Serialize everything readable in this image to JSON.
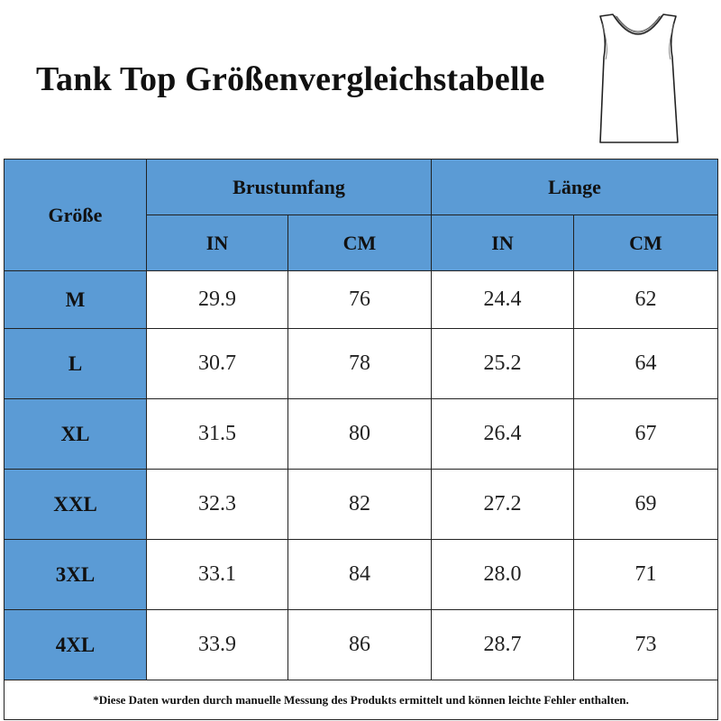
{
  "title": "Tank Top Größenvergleichstabelle",
  "colors": {
    "header_bg": "#5b9bd5",
    "cell_bg": "#ffffff",
    "border": "#222222"
  },
  "icons": {
    "garment": "tank-top-icon"
  },
  "table": {
    "size_header": "Größe",
    "groups": [
      "Brustumfang",
      "Länge"
    ],
    "units": [
      "IN",
      "CM",
      "IN",
      "CM"
    ],
    "rows": [
      {
        "size": "M",
        "values": [
          "29.9",
          "76",
          "24.4",
          "62"
        ]
      },
      {
        "size": "L",
        "values": [
          "30.7",
          "78",
          "25.2",
          "64"
        ]
      },
      {
        "size": "XL",
        "values": [
          "31.5",
          "80",
          "26.4",
          "67"
        ]
      },
      {
        "size": "XXL",
        "values": [
          "32.3",
          "82",
          "27.2",
          "69"
        ]
      },
      {
        "size": "3XL",
        "values": [
          "33.1",
          "84",
          "28.0",
          "71"
        ]
      },
      {
        "size": "4XL",
        "values": [
          "33.9",
          "86",
          "28.7",
          "73"
        ]
      }
    ]
  },
  "note": "*Diese Daten wurden durch manuelle Messung des Produkts ermittelt und können leichte Fehler enthalten."
}
